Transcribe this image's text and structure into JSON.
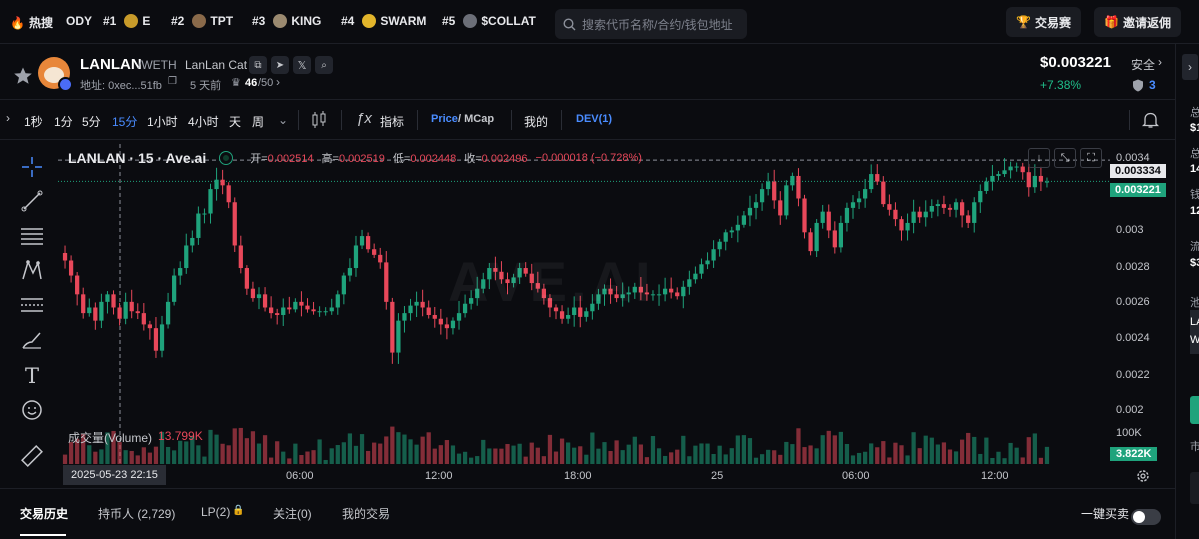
{
  "topbar": {
    "hot_label": "热搜",
    "hot_items": [
      {
        "rank": "",
        "name": "ODY"
      },
      {
        "rank": "#1",
        "name": "E"
      },
      {
        "rank": "#2",
        "name": "TPT"
      },
      {
        "rank": "#3",
        "name": "KING"
      },
      {
        "rank": "#4",
        "name": "SWARM"
      },
      {
        "rank": "#5",
        "name": "$COLLAT"
      }
    ],
    "search_placeholder": "搜索代币名称/合约/钱包地址",
    "trade_contest": "交易赛",
    "invite_rebate": "邀请返佣"
  },
  "token": {
    "symbol": "LANLAN",
    "pair": "/WETH",
    "full_name": "LanLan Cat",
    "address_label": "地址: 0xec...51fb",
    "age": "5 天前",
    "score": "46",
    "score_total": "/50",
    "price": "$0.003221",
    "change": "+7.38%",
    "safety_label": "安全",
    "safety_count": "3"
  },
  "toolbar": {
    "intervals": [
      "1秒",
      "1分",
      "5分",
      "15分",
      "1小时",
      "4小时",
      "天",
      "周"
    ],
    "active_interval": "15分",
    "indicators": "指标",
    "price_label": "Price",
    "mcap_label": "/ MCap",
    "mine": "我的",
    "dev": "DEV(1)"
  },
  "chart_legend": {
    "title": "LANLAN · 15 · Ave.ai",
    "open_label": "开=",
    "open": "0.002514",
    "high_label": "高=",
    "high": "0.002519",
    "low_label": "低=",
    "low": "0.002448",
    "close_label": "收=",
    "close": "0.002496",
    "change": "−0.000018 (−0.728%)",
    "volume_label": "成交量(Volume)",
    "volume_value": "13.799K",
    "watermark": "AVE.AI"
  },
  "chart_data": {
    "type": "candlestick",
    "title": "LANLAN · 15 · Ave.ai",
    "y_range": [
      0.00193,
      0.00342
    ],
    "y_ticks": [
      "0.0034",
      "0.003",
      "0.0028",
      "0.0026",
      "0.0024",
      "0.0022",
      "0.002"
    ],
    "y_tick_values": [
      0.0034,
      0.003,
      0.0028,
      0.0026,
      0.0024,
      0.0022,
      0.002
    ],
    "current_price_label": "0.003221",
    "current_price": 0.003221,
    "crosshair_price_label": "0.003334",
    "crosshair_price": 0.003334,
    "x_ticks": [
      "06:00",
      "12:00",
      "18:00",
      "25",
      "06:00",
      "12:00"
    ],
    "crosshair_time": "2025-05-23 22:15",
    "volume_tick": "100K",
    "volume_current_label": "3.822K",
    "closes": [
      0.0028,
      0.00272,
      0.00262,
      0.00252,
      0.00255,
      0.00248,
      0.00258,
      0.00262,
      0.00255,
      0.00249,
      0.00258,
      0.00253,
      0.00252,
      0.00246,
      0.00244,
      0.00232,
      0.00246,
      0.00258,
      0.00272,
      0.00276,
      0.00288,
      0.00292,
      0.00305,
      0.00305,
      0.00318,
      0.00323,
      0.0032,
      0.00311,
      0.00288,
      0.00276,
      0.00265,
      0.0026,
      0.00262,
      0.00255,
      0.00252,
      0.00251,
      0.00255,
      0.00254,
      0.00258,
      0.00256,
      0.00254,
      0.00253,
      0.00253,
      0.00253,
      0.00255,
      0.00262,
      0.00272,
      0.00276,
      0.00288,
      0.00293,
      0.00286,
      0.00283,
      0.00279,
      0.00258,
      0.00231,
      0.00248,
      0.00252,
      0.00256,
      0.00258,
      0.00255,
      0.00251,
      0.00249,
      0.00246,
      0.00244,
      0.00248,
      0.00252,
      0.00257,
      0.0026,
      0.00265,
      0.0027,
      0.00276,
      0.00274,
      0.0027,
      0.00268,
      0.00271,
      0.00276,
      0.00273,
      0.00268,
      0.00265,
      0.0026,
      0.00255,
      0.00253,
      0.00249,
      0.00251,
      0.00255,
      0.0025,
      0.00253,
      0.00257,
      0.00262,
      0.00265,
      0.00262,
      0.0026,
      0.00262,
      0.00263,
      0.00266,
      0.00263,
      0.00262,
      0.00262,
      0.00262,
      0.00265,
      0.00263,
      0.00261,
      0.00266,
      0.0027,
      0.00273,
      0.00278,
      0.0028,
      0.00286,
      0.0029,
      0.00295,
      0.00296,
      0.00299,
      0.00304,
      0.00308,
      0.00311,
      0.00318,
      0.00322,
      0.00312,
      0.00304,
      0.0032,
      0.00325,
      0.00313,
      0.00295,
      0.00285,
      0.003,
      0.00306,
      0.00296,
      0.00287,
      0.003,
      0.00308,
      0.00311,
      0.00313,
      0.00318,
      0.00326,
      0.00322,
      0.0031,
      0.00307,
      0.00302,
      0.00296,
      0.003,
      0.00306,
      0.00303,
      0.00306,
      0.00309,
      0.0031,
      0.00308,
      0.00307,
      0.00311,
      0.00304,
      0.003,
      0.00311,
      0.00317,
      0.00322,
      0.00325,
      0.00326,
      0.00328,
      0.0033,
      0.0033,
      0.00327,
      0.00319,
      0.00325,
      0.00322,
      0.00322
    ],
    "up_color": "#1fa37c",
    "down_color": "#e8485a"
  },
  "bottom_tabs": {
    "history": "交易历史",
    "holders": "持币人 (2,729)",
    "lp": "LP(2)",
    "watch": "关注(0)",
    "my_trades": "我的交易",
    "quick_buy": "一键买卖"
  },
  "right_panel": {
    "texts": [
      "总",
      "$1",
      "总",
      "14",
      "钱",
      "12",
      "流",
      "$3",
      "池",
      "LA",
      "W",
      "市"
    ]
  }
}
